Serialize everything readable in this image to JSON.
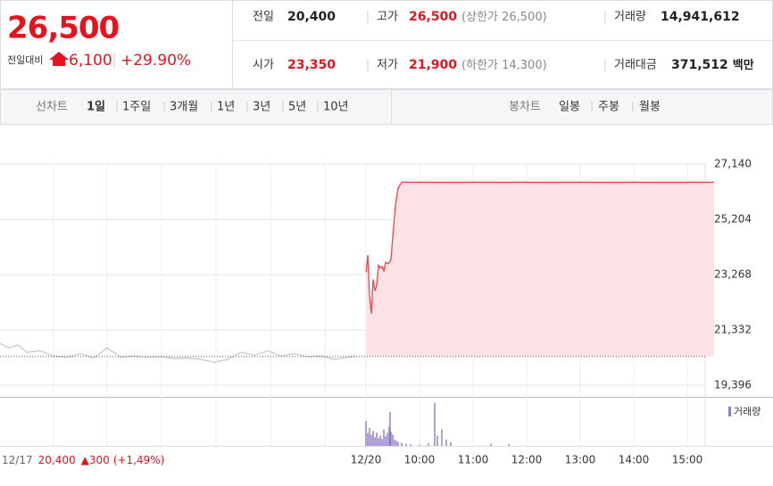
{
  "quote": {
    "price": "26,500",
    "change_label": "전일대비",
    "change": "6,100",
    "change_pct": "+29.90%"
  },
  "stats": [
    [
      {
        "label": "전일",
        "value": "20,400"
      },
      {
        "label": "고가",
        "value": "26,500",
        "note": "(상한가 26,500)",
        "color": "#e8121e"
      },
      {
        "label": "거래량",
        "value": "14,941,612"
      }
    ],
    [
      {
        "label": "시가",
        "value": "23,350",
        "color": "#e8121e"
      },
      {
        "label": "저가",
        "value": "21,900",
        "note": "(하한가 14,300)",
        "color": "#e8121e"
      },
      {
        "label": "거래대금",
        "value": "371,512",
        "unit": "백만"
      }
    ]
  ],
  "tabs": {
    "line_label": "선차트",
    "line_periods": [
      "1일",
      "1주일",
      "3개월",
      "1년",
      "3년",
      "5년",
      "10년"
    ],
    "active": 0,
    "candle_label": "봉차트",
    "candle_periods": [
      "일봉",
      "주봉",
      "월봉"
    ]
  },
  "chart_data": {
    "type": "line",
    "xlim": [
      -410,
      380
    ],
    "ylim": [
      18990,
      28200
    ],
    "grid": true,
    "yticks": [
      {
        "value": 19396,
        "label": "19,396"
      },
      {
        "value": 21332,
        "label": "21,332"
      },
      {
        "value": 23268,
        "label": "23,268"
      },
      {
        "value": 25204,
        "label": "25,204"
      },
      {
        "value": 27140,
        "label": "27,140"
      }
    ],
    "xticks": [
      {
        "value": 0,
        "label": "12/20"
      },
      {
        "value": 60,
        "label": "10:00"
      },
      {
        "value": 120,
        "label": "11:00"
      },
      {
        "value": 180,
        "label": "12:00"
      },
      {
        "value": 240,
        "label": "13:00"
      },
      {
        "value": 300,
        "label": "14:00"
      },
      {
        "value": 360,
        "label": "15:00"
      }
    ],
    "reference": 20400,
    "series": [
      {
        "color": "#c8c8c8",
        "x": [
          -410,
          -400,
          -390,
          -380,
          -365,
          -350,
          -335,
          -320,
          -305,
          -290,
          -275,
          -260,
          -245,
          -230,
          -215,
          -200,
          -185,
          -170,
          -155,
          -140,
          -125,
          -110,
          -95,
          -80,
          -65,
          -50,
          -35,
          -20,
          -12
        ],
        "values": [
          20860,
          20700,
          20800,
          20550,
          20600,
          20420,
          20380,
          20500,
          20350,
          20700,
          20380,
          20420,
          20380,
          20400,
          20330,
          20350,
          20300,
          20200,
          20300,
          20550,
          20450,
          20600,
          20420,
          20500,
          20400,
          20420,
          20300,
          20380,
          20420
        ]
      },
      {
        "color": "#f0434d",
        "fill": "#fde3e5",
        "x": [
          0,
          2,
          4,
          6,
          8,
          10,
          12,
          14,
          16,
          18,
          20,
          22,
          25,
          28,
          30,
          33,
          36,
          40,
          50,
          100,
          200,
          300,
          390
        ],
        "values": [
          23350,
          23950,
          22500,
          21900,
          23100,
          22700,
          22900,
          23600,
          23500,
          23550,
          23400,
          23700,
          23650,
          23800,
          24600,
          25700,
          26300,
          26500,
          26500,
          26500,
          26500,
          26500,
          26500
        ]
      }
    ],
    "volume": {
      "name": "거래량",
      "color": "#8c7bc8",
      "vlim": [
        0,
        1100000
      ],
      "x": [
        0,
        2,
        4,
        6,
        8,
        10,
        12,
        14,
        16,
        18,
        20,
        22,
        24,
        26,
        27,
        28,
        30,
        32,
        34,
        36,
        40,
        45,
        50,
        60,
        70,
        77,
        80,
        85,
        90,
        95,
        140,
        160
      ],
      "values": [
        580000,
        300000,
        420000,
        260000,
        350000,
        200000,
        310000,
        180000,
        240000,
        160000,
        380000,
        220000,
        300000,
        450000,
        790000,
        330000,
        260000,
        150000,
        120000,
        90000,
        70000,
        50000,
        40000,
        30000,
        60000,
        1000000,
        240000,
        380000,
        150000,
        90000,
        50000,
        40000
      ]
    }
  },
  "footer": {
    "date": "12/17",
    "price": "20,400",
    "change": "▲300",
    "pct": "(+1,49%)"
  }
}
